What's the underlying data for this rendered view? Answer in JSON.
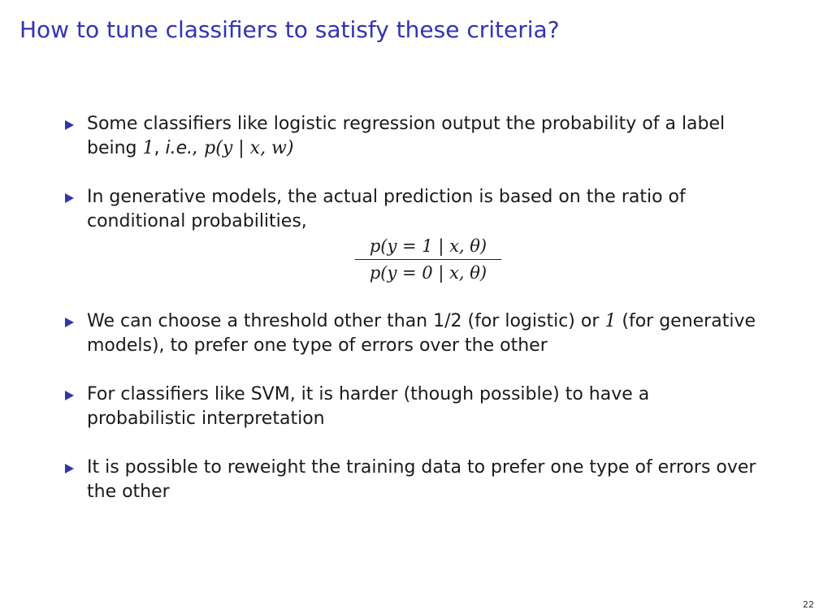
{
  "title": "How to tune classifiers to satisfy these criteria?",
  "bullets": [
    {
      "text": "Some classifiers like logistic regression output the probability of a label being",
      "math_one": "1",
      "comma": ",",
      "ie": "i.e.,",
      "math_expr": "p(y | x, w)"
    },
    {
      "text": "In generative models, the actual prediction is based on the ratio of conditional probabilities,",
      "fraction_numerator": "p(y = 1 | x, θ)",
      "fraction_denominator": "p(y = 0 | x, θ)"
    },
    {
      "text_before": "We can choose a threshold other than 1/2 (for logistic) or",
      "math_one": "1",
      "text_after": "(for generative models), to prefer one type of errors over the other"
    },
    {
      "text": "For classifiers like SVM, it is harder (though possible) to have a probabilistic interpretation"
    },
    {
      "text": "It is possible to reweight the training data to prefer one type of errors over the other"
    }
  ],
  "page_number": "22",
  "colors": {
    "title": "#3333b2",
    "bullet_marker": "#3333b2",
    "text": "#1a1a1a"
  }
}
